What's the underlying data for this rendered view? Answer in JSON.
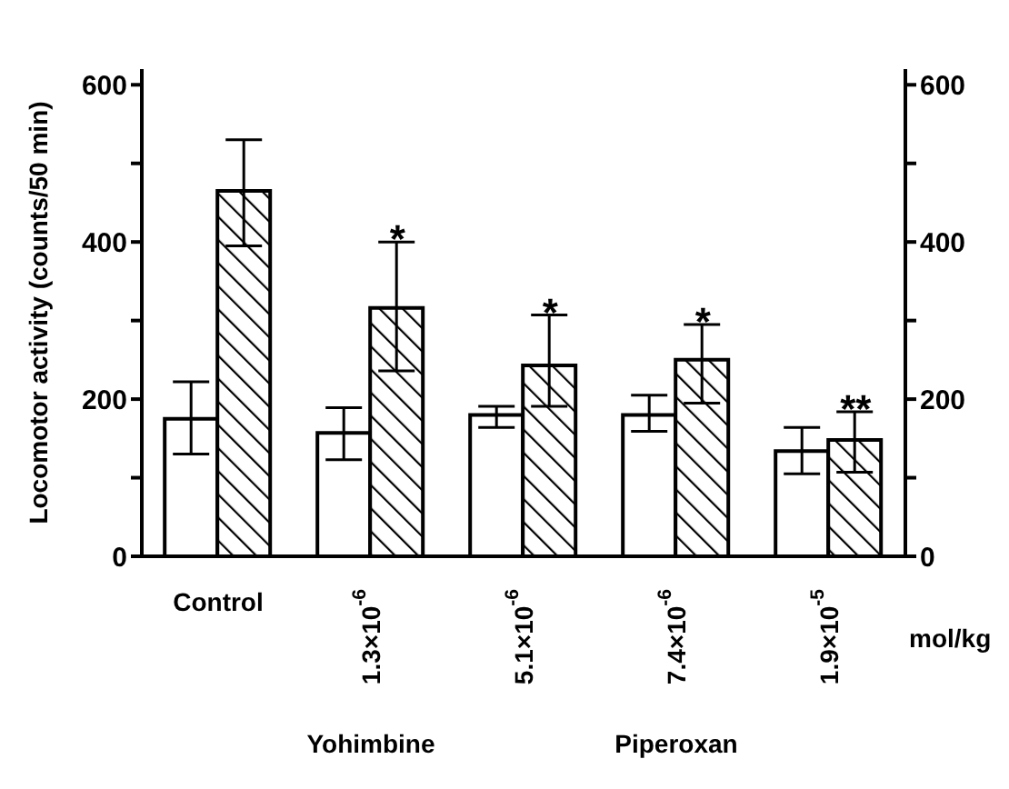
{
  "chart_data": {
    "type": "bar",
    "ylabel": "Locomotor activity (counts/50 min)",
    "categories": [
      "Control",
      "1.3×10$^{-6}$",
      "5.1×10$^{-6}$",
      "7.4×10$^{-6}$",
      "1.9×10$^{-5}$"
    ],
    "series": [
      {
        "color": "#ffffff",
        "values": [
          175,
          157,
          180,
          180,
          134
        ],
        "errors": [
          [
            130,
            222
          ],
          [
            123,
            189
          ],
          [
            164,
            191
          ],
          [
            159,
            205
          ],
          [
            105,
            164
          ]
        ]
      },
      {
        "color": "#000000",
        "values": [
          465,
          316,
          243,
          250,
          148
        ],
        "errors": [
          [
            395,
            530
          ],
          [
            236,
            400
          ],
          [
            191,
            307
          ],
          [
            195,
            295
          ],
          [
            107,
            184
          ]
        ]
      }
    ],
    "ylim": [
      0,
      620
    ],
    "yticks": [
      0,
      {
        "value": 100,
        "label": null
      },
      200,
      {
        "value": 300,
        "label": null
      },
      400,
      {
        "value": 500,
        "label": null
      },
      600
    ],
    "y2lim": [
      0,
      620
    ],
    "y2ticks": [
      0,
      {
        "value": 100,
        "label": null
      },
      200,
      {
        "value": 300,
        "label": null
      },
      400,
      {
        "value": 500,
        "label": null
      },
      600
    ],
    "annotations": [
      "*",
      "*",
      "*",
      "**",
      "Yohimbine",
      "Piperoxan",
      "mol/kg"
    ],
    "grid": false,
    "legend": false
  }
}
